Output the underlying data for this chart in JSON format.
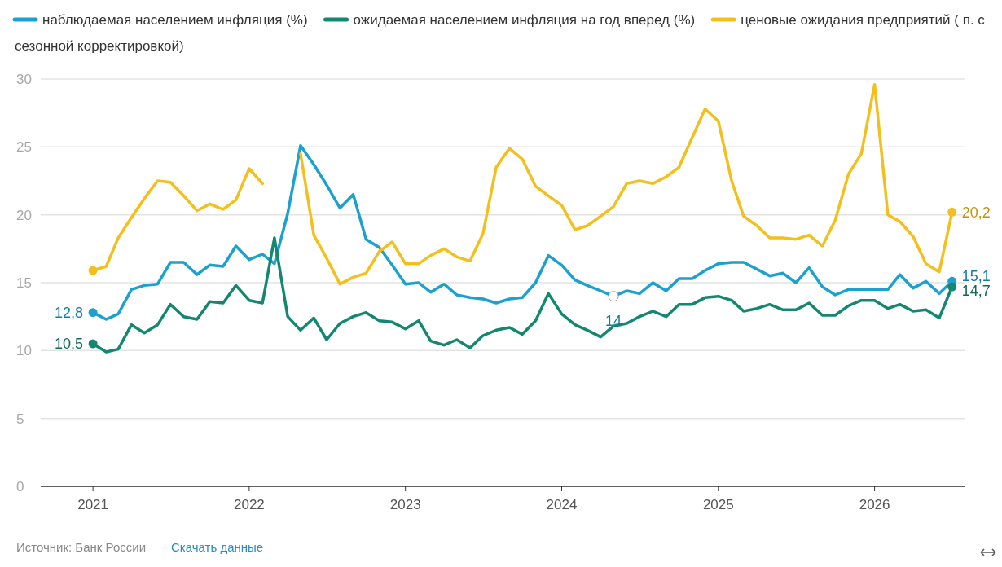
{
  "chart_data": {
    "type": "line",
    "x": [
      "2021-01",
      "2021-02",
      "2021-03",
      "2021-04",
      "2021-05",
      "2021-06",
      "2021-07",
      "2021-08",
      "2021-09",
      "2021-10",
      "2021-11",
      "2021-12",
      "2022-01",
      "2022-02",
      "2022-03",
      "2022-04",
      "2022-05",
      "2022-06",
      "2022-07",
      "2022-08",
      "2022-09",
      "2022-10",
      "2022-11",
      "2022-12",
      "2023-01",
      "2023-02",
      "2023-03",
      "2023-04",
      "2023-05",
      "2023-06",
      "2023-07",
      "2023-08",
      "2023-09",
      "2023-10",
      "2023-11",
      "2023-12",
      "2024-01",
      "2024-02",
      "2024-03",
      "2024-04",
      "2024-05",
      "2024-06",
      "2024-07",
      "2024-08",
      "2024-09",
      "2024-10",
      "2024-11",
      "2024-12",
      "2025-01",
      "2025-02",
      "2025-03",
      "2025-04",
      "2025-05",
      "2025-06",
      "2025-07",
      "2025-08",
      "2025-09",
      "2025-10",
      "2025-11",
      "2025-12",
      "2026-01",
      "2026-02",
      "2026-03",
      "2026-04",
      "2026-05",
      "2026-06",
      "2026-07"
    ],
    "series": [
      {
        "name": "наблюдаемая населением инфляция (%)",
        "color": "#1ba1cf",
        "values": [
          12.8,
          12.3,
          12.7,
          14.5,
          14.8,
          14.9,
          16.5,
          16.5,
          15.6,
          16.3,
          16.2,
          17.7,
          16.7,
          17.1,
          16.4,
          20.1,
          25.1,
          23.7,
          22.2,
          20.5,
          21.5,
          18.2,
          17.6,
          16.3,
          14.9,
          15.0,
          14.3,
          14.9,
          14.1,
          13.9,
          13.8,
          13.5,
          13.8,
          13.9,
          15.0,
          17.0,
          16.3,
          15.2,
          14.8,
          14.4,
          14.0,
          14.4,
          14.2,
          15.0,
          14.4,
          15.3,
          15.3,
          15.9,
          16.4,
          16.5,
          16.5,
          16.0,
          15.5,
          15.7,
          15.0,
          16.1,
          14.7,
          14.1,
          14.5,
          14.5,
          14.5,
          14.5,
          15.6,
          14.6,
          15.1,
          14.2,
          15.1
        ]
      },
      {
        "name": "ожидаемая населением инфляция на год вперед (%)",
        "color": "#13876f",
        "values": [
          10.5,
          9.9,
          10.1,
          11.9,
          11.3,
          11.9,
          13.4,
          12.5,
          12.3,
          13.6,
          13.5,
          14.8,
          13.7,
          13.5,
          18.3,
          12.5,
          11.5,
          12.4,
          10.8,
          12.0,
          12.5,
          12.8,
          12.2,
          12.1,
          11.6,
          12.2,
          10.7,
          10.4,
          10.8,
          10.2,
          11.1,
          11.5,
          11.7,
          11.2,
          12.2,
          14.2,
          12.7,
          11.9,
          11.5,
          11.0,
          11.8,
          12.0,
          12.5,
          12.9,
          12.5,
          13.4,
          13.4,
          13.9,
          14.0,
          13.7,
          12.9,
          13.1,
          13.4,
          13.0,
          13.0,
          13.5,
          12.6,
          12.6,
          13.3,
          13.7,
          13.7,
          13.1,
          13.4,
          12.9,
          13.0,
          12.4,
          14.7
        ]
      },
      {
        "name": "ценовые ожидания предприятий ( п. с сезонной корректировкой)",
        "color": "#f5bf1b",
        "values": [
          15.9,
          16.2,
          18.3,
          19.8,
          21.2,
          22.5,
          22.4,
          21.4,
          20.3,
          20.8,
          20.4,
          21.1,
          23.4,
          22.3,
          null,
          null,
          24.5,
          18.5,
          16.8,
          14.9,
          15.4,
          15.7,
          17.3,
          18.0,
          16.4,
          16.4,
          17.0,
          17.5,
          16.9,
          16.6,
          18.6,
          23.5,
          24.9,
          24.1,
          22.1,
          21.4,
          20.7,
          18.9,
          19.2,
          19.9,
          20.6,
          22.3,
          22.5,
          22.3,
          22.8,
          23.5,
          25.7,
          27.8,
          26.9,
          22.5,
          19.9,
          19.2,
          18.3,
          18.3,
          18.2,
          18.5,
          17.7,
          19.6,
          23.0,
          24.5,
          29.6,
          20.0,
          19.5,
          18.4,
          16.4,
          15.8,
          20.2
        ]
      }
    ],
    "xlim": [
      "2020-09",
      "2026-08"
    ],
    "xticks": [
      "2021",
      "2022",
      "2023",
      "2024",
      "2025",
      "2026"
    ],
    "ylim": [
      0,
      30
    ],
    "yticks": [
      0,
      5,
      10,
      15,
      20,
      25,
      30
    ],
    "grid": "y",
    "legend": "top",
    "marker": "none",
    "annotations": [
      {
        "text": "12,8",
        "x": "2021-01",
        "y": 12.8
      },
      {
        "text": "10,5",
        "x": "2021-01",
        "y": 10.5
      },
      {
        "text": "14",
        "x": "2024-05",
        "y": 14.0
      },
      {
        "text": "15,1",
        "x": "2026-07",
        "y": 15.1
      },
      {
        "text": "14,7",
        "x": "2026-07",
        "y": 14.7
      },
      {
        "text": "20,2",
        "x": "2026-07",
        "y": 20.2
      },
      "Источник: Банк России",
      "Скачать данные"
    ]
  }
}
